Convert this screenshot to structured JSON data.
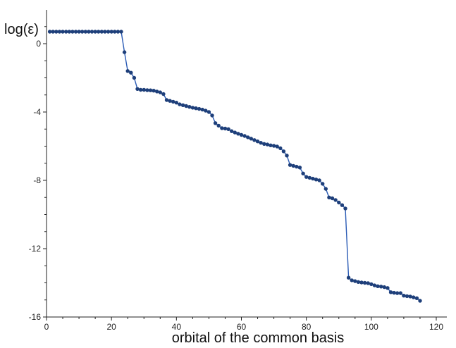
{
  "chart_data": {
    "type": "line",
    "title": "",
    "xlabel": "orbital of the common basis",
    "ylabel": "log(ε)",
    "xlim": [
      0,
      125
    ],
    "ylim": [
      -16,
      2
    ],
    "xticks": [
      0,
      20,
      40,
      60,
      80,
      100,
      120
    ],
    "yticks": [
      0,
      -4,
      -8,
      -12,
      -16
    ],
    "grid": false,
    "legend": "none",
    "colors": {
      "line": "#2a5bb5",
      "marker": "#1e3f7a"
    },
    "series": [
      {
        "x": [
          1,
          2,
          3,
          4,
          5,
          6,
          7,
          8,
          9,
          10,
          11,
          12,
          13,
          14,
          15,
          16,
          17,
          18,
          19,
          20,
          21,
          22,
          23,
          24,
          25,
          26,
          27,
          28,
          29,
          30,
          31,
          32,
          33,
          34,
          35,
          36,
          37,
          38,
          39,
          40,
          41,
          42,
          43,
          44,
          45,
          46,
          47,
          48,
          49,
          50,
          51,
          52,
          53,
          54,
          55,
          56,
          57,
          58,
          59,
          60,
          61,
          62,
          63,
          64,
          65,
          66,
          67,
          68,
          69,
          70,
          71,
          72,
          73,
          74,
          75,
          76,
          77,
          78,
          79,
          80,
          81,
          82,
          83,
          84,
          85,
          86,
          87,
          88,
          89,
          90,
          91,
          92,
          93,
          94,
          95,
          96,
          97,
          98,
          99,
          100,
          101,
          102,
          103,
          104,
          105,
          106,
          107,
          108,
          109,
          110,
          111,
          112,
          113,
          114,
          115
        ],
        "y": [
          0.7,
          0.7,
          0.7,
          0.7,
          0.7,
          0.7,
          0.7,
          0.7,
          0.7,
          0.7,
          0.7,
          0.7,
          0.7,
          0.7,
          0.7,
          0.7,
          0.7,
          0.7,
          0.7,
          0.7,
          0.7,
          0.7,
          0.7,
          -0.5,
          -1.6,
          -1.7,
          -2.0,
          -2.65,
          -2.7,
          -2.7,
          -2.72,
          -2.73,
          -2.75,
          -2.8,
          -2.85,
          -2.95,
          -3.3,
          -3.35,
          -3.4,
          -3.45,
          -3.55,
          -3.6,
          -3.65,
          -3.7,
          -3.75,
          -3.78,
          -3.82,
          -3.86,
          -3.92,
          -4.0,
          -4.2,
          -4.65,
          -4.8,
          -4.95,
          -4.97,
          -5.0,
          -5.12,
          -5.2,
          -5.27,
          -5.34,
          -5.4,
          -5.48,
          -5.56,
          -5.64,
          -5.72,
          -5.8,
          -5.87,
          -5.9,
          -5.95,
          -5.98,
          -6.02,
          -6.12,
          -6.3,
          -6.55,
          -7.1,
          -7.15,
          -7.2,
          -7.25,
          -7.6,
          -7.8,
          -7.85,
          -7.9,
          -7.95,
          -8.0,
          -8.2,
          -8.5,
          -9.0,
          -9.05,
          -9.15,
          -9.3,
          -9.45,
          -9.65,
          -13.7,
          -13.85,
          -13.9,
          -13.95,
          -13.98,
          -14.0,
          -14.02,
          -14.08,
          -14.15,
          -14.2,
          -14.22,
          -14.25,
          -14.3,
          -14.55,
          -14.58,
          -14.6,
          -14.6,
          -14.75,
          -14.78,
          -14.8,
          -14.85,
          -14.9,
          -15.05
        ]
      }
    ]
  }
}
